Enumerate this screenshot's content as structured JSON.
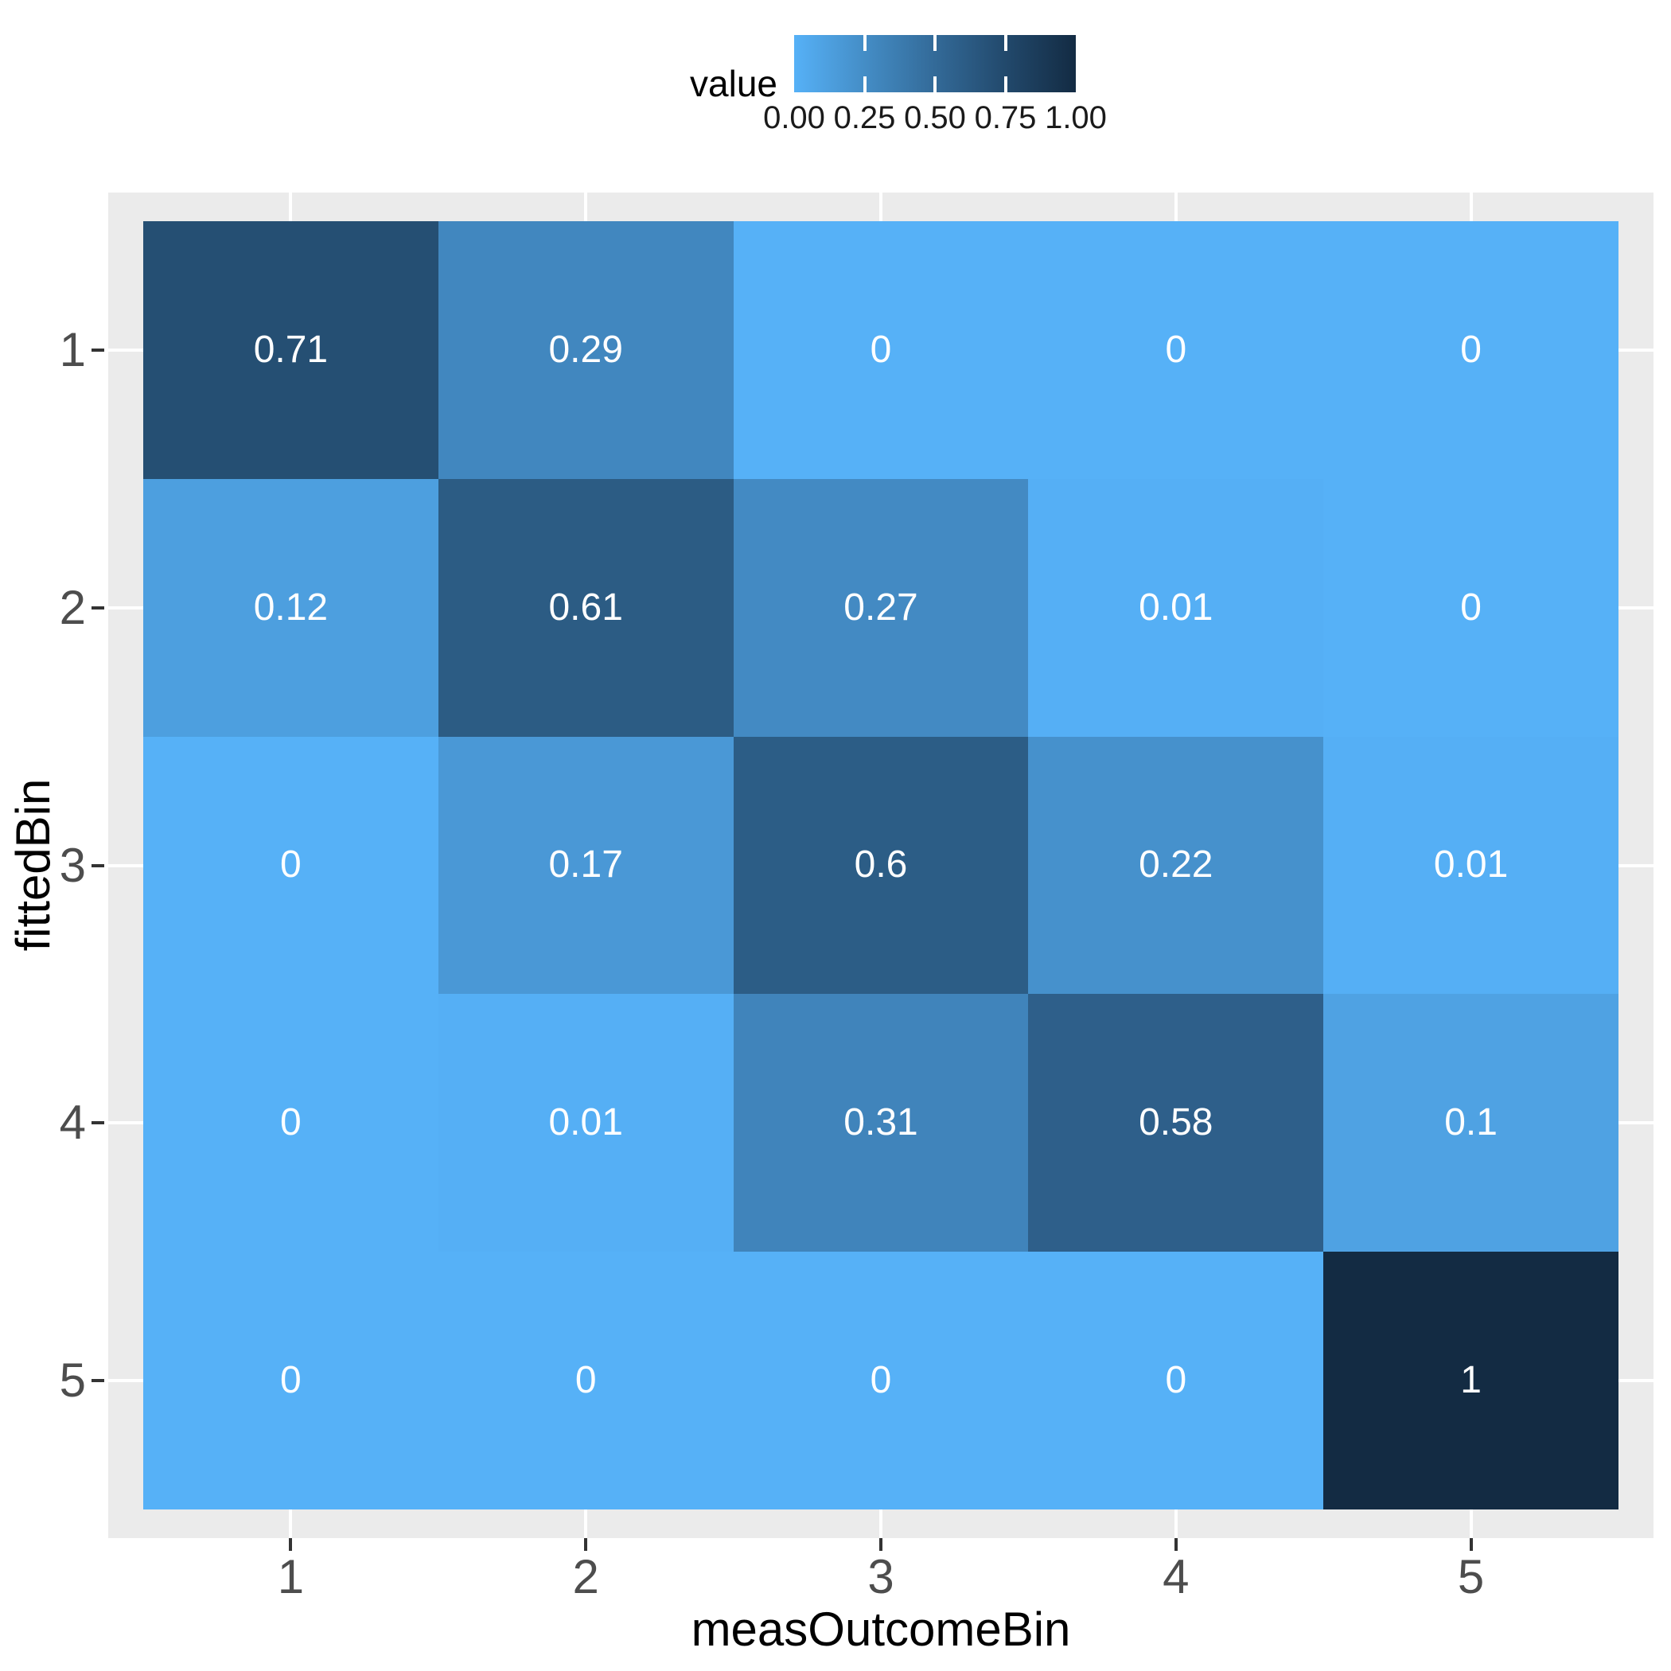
{
  "figure": {
    "background": "#FFFFFF",
    "panel_background": "#EBEBEB",
    "gridline_color": "#FFFFFF",
    "tick_mark_color": "#333333",
    "axis_text_color": "#4D4D4D",
    "axis_title_color": "#000000",
    "cell_text_color": "#FFFFFF"
  },
  "legend": {
    "title": "value",
    "labels": [
      "0.00",
      "0.25",
      "0.50",
      "0.75",
      "1.00"
    ],
    "gradient_stops": [
      "#56B1F7",
      "#448DC6",
      "#336A98",
      "#22496C",
      "#132B43"
    ]
  },
  "chart_data": {
    "type": "heatmap",
    "title": "",
    "xlabel": "measOutcomeBin",
    "ylabel": "fittedBin",
    "x_categories": [
      "1",
      "2",
      "3",
      "4",
      "5"
    ],
    "y_categories": [
      "1",
      "2",
      "3",
      "4",
      "5"
    ],
    "legend_title": "value",
    "legend_range": [
      0,
      1
    ],
    "color_scale": {
      "low_value": 0,
      "low_color": "#56B1F7",
      "high_value": 1,
      "high_color": "#132B43",
      "interpolation": "Lab"
    },
    "rows": [
      {
        "fittedBin": "1",
        "values": [
          0.71,
          0.29,
          0,
          0,
          0
        ]
      },
      {
        "fittedBin": "2",
        "values": [
          0.12,
          0.61,
          0.27,
          0.01,
          0
        ]
      },
      {
        "fittedBin": "3",
        "values": [
          0,
          0.17,
          0.6,
          0.22,
          0.01
        ]
      },
      {
        "fittedBin": "4",
        "values": [
          0,
          0.01,
          0.31,
          0.58,
          0.1
        ]
      },
      {
        "fittedBin": "5",
        "values": [
          0,
          0,
          0,
          0,
          1
        ]
      }
    ],
    "value_colors": {
      "0": "#56B1F7",
      "0.01": "#55AFF5",
      "0.1": "#4FA2E3",
      "0.12": "#4D9FDF",
      "0.17": "#4A98D6",
      "0.22": "#4691CC",
      "0.27": "#438AC3",
      "0.29": "#4187BF",
      "0.31": "#4084BB",
      "0.58": "#2E5F8A",
      "0.6": "#2C5D86",
      "0.61": "#2C5C84",
      "0.71": "#254F73",
      "1": "#132B43"
    }
  }
}
